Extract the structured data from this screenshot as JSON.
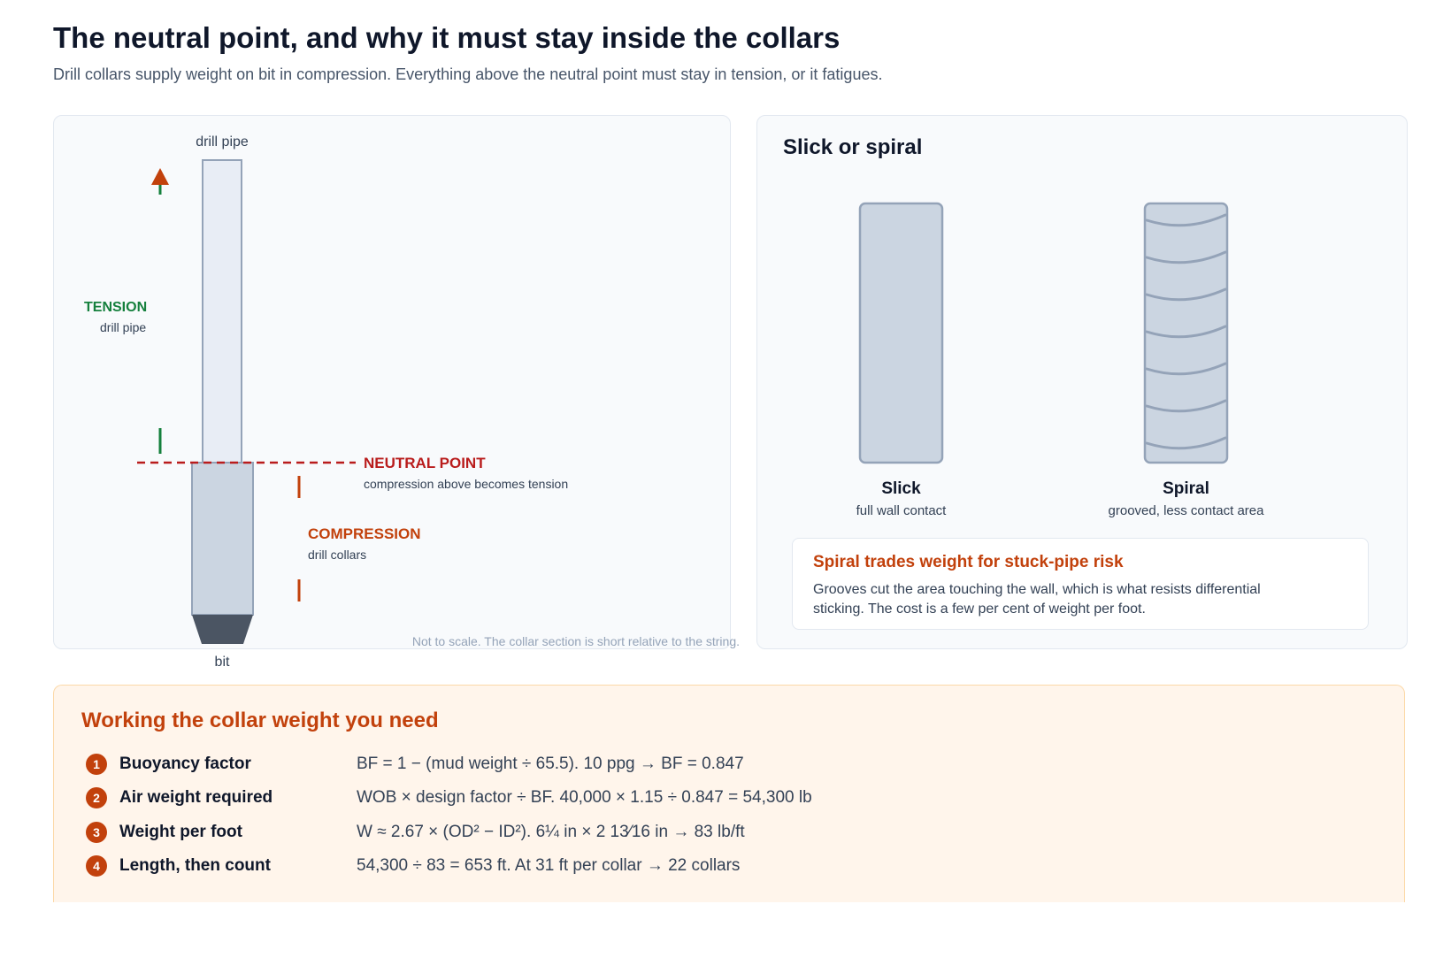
{
  "header": {
    "title": "The neutral point, and why it must stay inside the collars",
    "subtitle": "Drill collars supply weight on bit in compression. Everything above the neutral point must stay in tension, or it fatigues."
  },
  "string_diagram": {
    "top_label": "drill pipe",
    "bottom_label": "bit",
    "tension": {
      "title": "TENSION",
      "subtitle": "drill pipe"
    },
    "neutral_point": {
      "title": "NEUTRAL POINT",
      "subtitle": "compression above becomes tension"
    },
    "compression": {
      "title": "COMPRESSION",
      "subtitle": "drill collars"
    },
    "note": "Not to scale. The collar section is short relative to the string.",
    "colors": {
      "tension": "#15803d",
      "neutral": "#b91c1c",
      "compression": "#c2410c"
    }
  },
  "collar_types": {
    "heading": "Slick or spiral",
    "slick": {
      "name": "Slick",
      "description": "full wall contact"
    },
    "spiral": {
      "name": "Spiral",
      "description": "grooved, less contact area"
    },
    "callout": {
      "title": "Spiral trades weight for stuck-pipe risk",
      "body": "Grooves cut the area touching the wall, which is what resists differential sticking. The cost is a few per cent of weight per foot."
    }
  },
  "steps": {
    "title": "Working the collar weight you need",
    "items": [
      {
        "num": "1",
        "label": "Buoyancy factor",
        "formula": "BF = 1 − (mud weight ÷ 65.5). 10 ppg → BF = 0.847"
      },
      {
        "num": "2",
        "label": "Air weight required",
        "formula": "WOB × design factor ÷ BF. 40,000 × 1.15 ÷ 0.847 = 54,300 lb"
      },
      {
        "num": "3",
        "label": "Weight per foot",
        "formula": "W ≈ 2.67 × (OD² − ID²). 6¼ in × 2 13⁄16 in → 83 lb/ft"
      },
      {
        "num": "4",
        "label": "Length, then count",
        "formula": "54,300 ÷ 83 = 653 ft. At 31 ft per collar → 22 collars"
      }
    ]
  }
}
